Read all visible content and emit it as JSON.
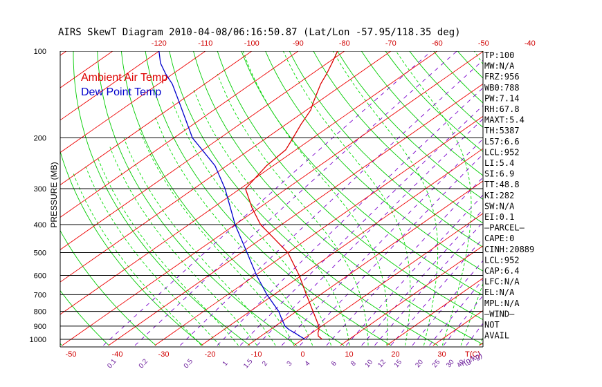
{
  "chart_data": {
    "type": "line",
    "title": "AIRS SkewT Diagram 2010-04-08/06:16:50.87 (Lat/Lon -57.95/118.35 deg)",
    "ylabel": "PRESSURE (MB)",
    "y_scale": "log",
    "ylim": [
      1000,
      100
    ],
    "pressure_ticks": [
      100,
      200,
      300,
      400,
      500,
      600,
      700,
      800,
      900,
      1000
    ],
    "temp_ticks_top": [
      -120,
      -110,
      -100,
      -90,
      -80,
      -70,
      -60,
      -50,
      -40
    ],
    "temp_ticks_bottom": [
      -50,
      -40,
      -30,
      -20,
      -10,
      0,
      10,
      20,
      30
    ],
    "temp_unit_label": "T(C)",
    "mixing_ratio_labels": [
      "0.1",
      "0.2",
      "0.5",
      "1",
      "1.5",
      "2",
      "3",
      "4",
      "6",
      "8",
      "10",
      "12",
      "15",
      "20",
      "25",
      "30",
      "40"
    ],
    "mixing_unit_label": "r(g/kg)",
    "legend": [
      "Ambient Air Temp",
      "Dew Point Temp"
    ],
    "series": [
      {
        "name": "Ambient Air Temp",
        "color": "#dd0000",
        "pressure": [
          1000,
          975,
          950,
          925,
          900,
          850,
          800,
          700,
          600,
          500,
          400,
          350,
          300,
          250,
          220,
          200,
          180,
          160,
          150,
          130,
          120,
          110,
          100
        ],
        "temp": [
          4.2,
          2.4,
          1.3,
          0.5,
          -0.6,
          -3.4,
          -6.4,
          -13,
          -20.5,
          -30,
          -44.5,
          -51.5,
          -58.9,
          -61.4,
          -62.2,
          -64.3,
          -66.7,
          -69.1,
          -71,
          -75,
          -76.8,
          -79,
          -81.5
        ]
      },
      {
        "name": "Dew Point Temp",
        "color": "#0000cc",
        "pressure": [
          1000,
          975,
          950,
          925,
          900,
          850,
          800,
          700,
          600,
          500,
          400,
          300,
          250,
          200,
          150,
          130,
          120,
          110,
          100
        ],
        "temp": [
          0.5,
          -1.6,
          -3.7,
          -6,
          -7.9,
          -10.8,
          -13.8,
          -21.5,
          -29.7,
          -38.8,
          -50,
          -63.3,
          -72.5,
          -86,
          -100,
          -107,
          -111.5,
          -116,
          -120
        ]
      }
    ],
    "stats": [
      "TP:100",
      "MW:N/A",
      "FRZ:956",
      "WB0:788",
      "PW:7.14",
      "RH:67.8",
      "MAXT:5.4",
      "TH:5387",
      "L57:6.6",
      "LCL:952",
      "LI:5.4",
      "SI:6.9",
      "TT:48.8",
      "KI:282",
      "SW:N/A",
      "EI:0.1",
      "–PARCEL–",
      "CAPE:0",
      "CINH:20889",
      "LCL:952",
      "CAP:6.4",
      "LFC:N/A",
      "EL:N/A",
      "MPL:N/A",
      "–WIND–",
      "NOT",
      "AVAIL"
    ],
    "colors": {
      "isotherm": "#ee0000",
      "dry_adiabat": "#00cc00",
      "moist_adiabat": "#00dd00",
      "mixing_ratio": "#7a00cc",
      "isobar": "#000000"
    }
  }
}
